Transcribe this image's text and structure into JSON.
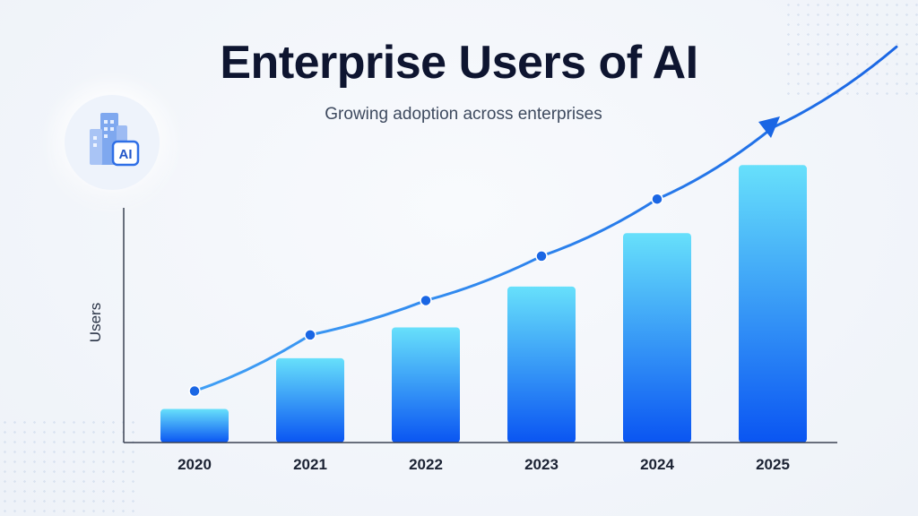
{
  "chart_data": {
    "type": "bar",
    "title": "Enterprise Users of AI",
    "subtitle": "Growing adoption across enterprises",
    "xlabel": "",
    "ylabel": "Users",
    "categories": [
      "2020",
      "2021",
      "2022",
      "2023",
      "2024",
      "2025"
    ],
    "series": [
      {
        "values": [
          37,
          93,
          127,
          172,
          231,
          306
        ]
      }
    ],
    "ylim": [
      0,
      330
    ],
    "trend_line": true,
    "trend_arrow": true,
    "grid": false,
    "legend": "none",
    "colors": {
      "bar_top": "#67e0fb",
      "bar_bottom": "#0a55f2",
      "trend": "#1f6fe6",
      "axis": "#3a4252"
    }
  },
  "badge": {
    "icon": "building-icon",
    "text": "AI"
  }
}
